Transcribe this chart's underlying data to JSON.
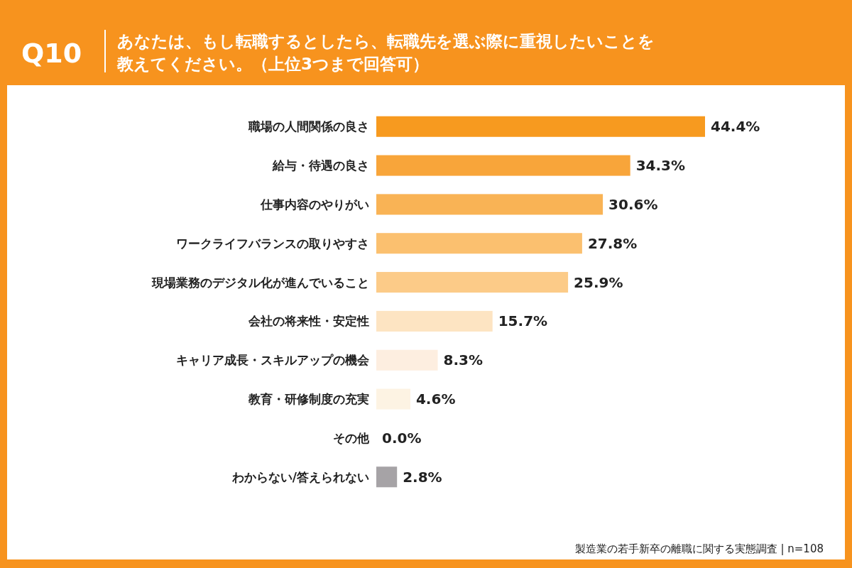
{
  "chart_data": {
    "type": "bar",
    "orientation": "horizontal",
    "title": "Q10",
    "subtitle": "あなたは、もし転職するとしたら、転職先を選ぶ際に重視したいことを教えてください。（上位3つまで回答可）",
    "categories": [
      "職場の人間関係の良さ",
      "給与・待遇の良さ",
      "仕事内容のやりがい",
      "ワークライフバランスの取りやすさ",
      "現場業務のデジタル化が進んでいること",
      "会社の将来性・安定性",
      "キャリア成長・スキルアップの機会",
      "教育・研修制度の充実",
      "その他",
      "わからない/答えられない"
    ],
    "values": [
      44.4,
      34.3,
      30.6,
      27.8,
      25.9,
      15.7,
      8.3,
      4.6,
      0.0,
      2.8
    ],
    "value_labels": [
      "44.4%",
      "34.3%",
      "30.6%",
      "27.8%",
      "25.9%",
      "15.7%",
      "8.3%",
      "4.6%",
      "0.0%",
      "2.8%"
    ],
    "colors": [
      "#f79a1f",
      "#f8a53a",
      "#f9b355",
      "#fbc06f",
      "#fccb88",
      "#fde4c2",
      "#fdeee0",
      "#fdf3e3",
      "#fdf3e3",
      "#a6a3a6"
    ],
    "annotations": [
      "製造業の若手新卒の離職に関する実態調査 | n=108"
    ]
  }
}
